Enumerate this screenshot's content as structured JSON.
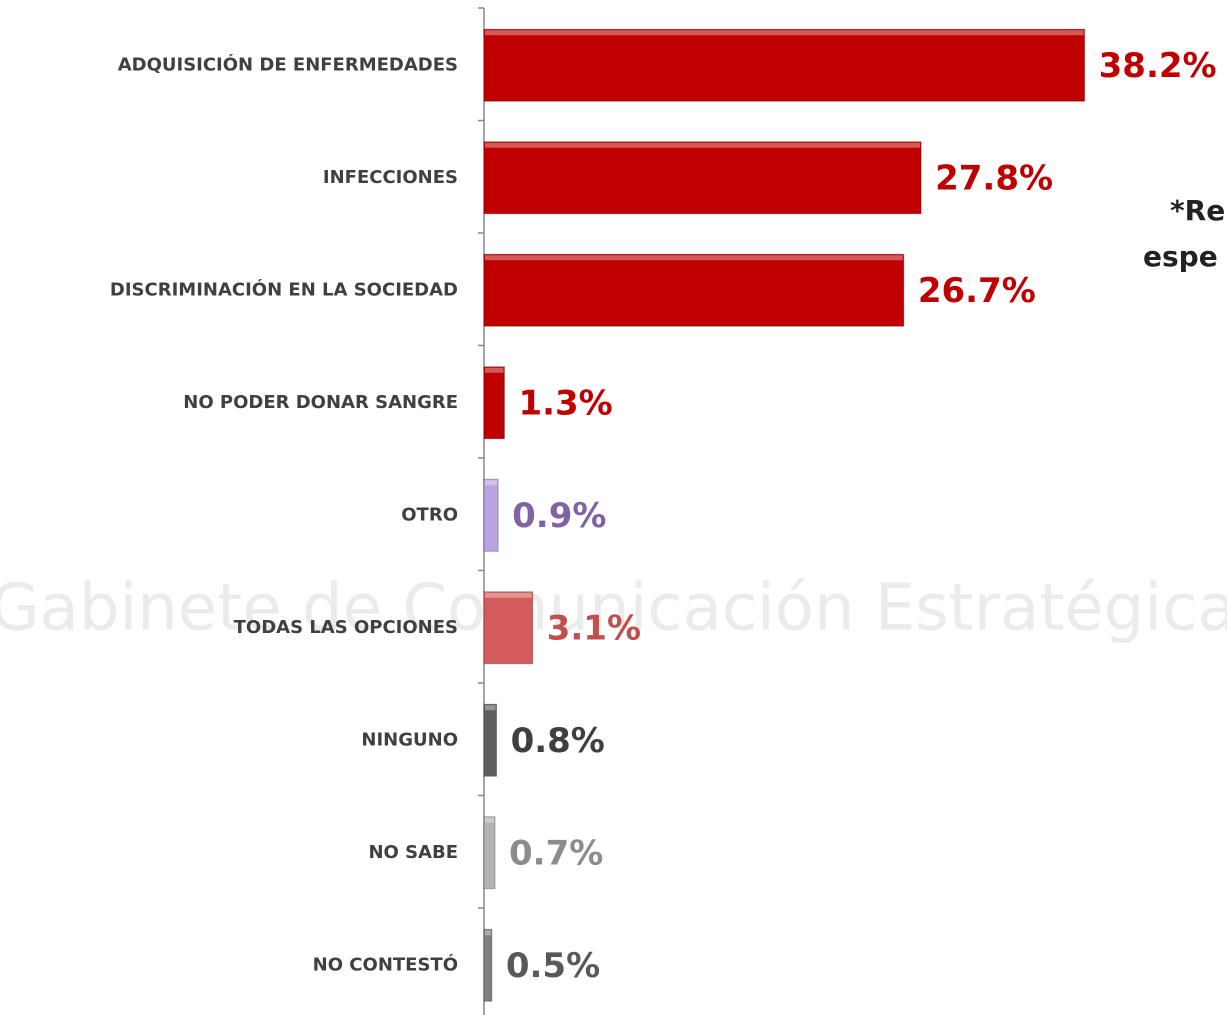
{
  "chart_data": {
    "type": "barh",
    "categories": [
      "ADQUISICIÓN DE ENFERMEDADES",
      "INFECCIONES",
      "DISCRIMINACIÓN EN LA SOCIEDAD",
      "NO PODER DONAR SANGRE",
      "OTRO",
      "TODAS LAS OPCIONES",
      "NINGUNO",
      "NO SABE",
      "NO CONTESTÓ"
    ],
    "values": [
      38.2,
      27.8,
      26.7,
      1.3,
      0.9,
      3.1,
      0.8,
      0.7,
      0.5
    ],
    "value_labels": [
      "38.2%",
      "27.8%",
      "26.7%",
      "1.3%",
      "0.9%",
      "3.1%",
      "0.8%",
      "0.7%",
      "0.5%"
    ],
    "colors": [
      "#c00000",
      "#c00000",
      "#c00000",
      "#c00000",
      "#b9a3e0",
      "#d45b5b",
      "#5f5f5f",
      "#b3b3b3",
      "#7f7f7f"
    ],
    "label_colors": [
      "#c00000",
      "#c00000",
      "#c00000",
      "#c00000",
      "#8064a2",
      "#c0504d",
      "#3f3f3f",
      "#8c8c8c",
      "#595959"
    ],
    "xlim": [
      0,
      47
    ],
    "annotation": [
      "*Re",
      "espe"
    ],
    "watermark": "Gabinete de Comunicación Estratégica"
  }
}
